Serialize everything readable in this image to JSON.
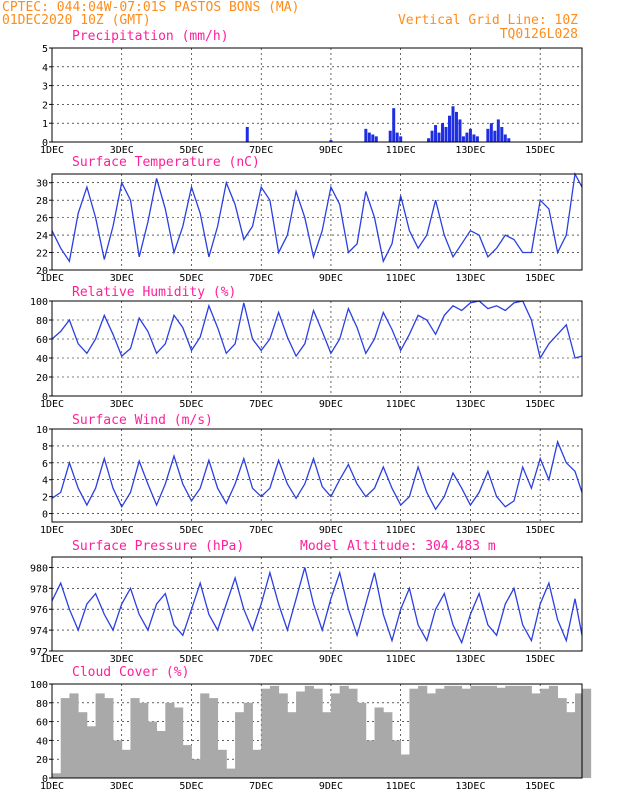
{
  "header": {
    "left1": "CPTEC:  044:04W-07:01S  PASTOS BONS (MA)",
    "left2": "01DEC2020 10Z (GMT)",
    "right1": "Vertical Grid Line: 10Z",
    "right2": "TQ0126L028"
  },
  "colors": {
    "line": "#2b3fe0",
    "bar": "#1f2ee0",
    "cloud": "#a9a9a9",
    "title": "#ff1f9a",
    "header": "#ff8c1a"
  },
  "x_axis": {
    "day_range": [
      0,
      15.2
    ],
    "ticks": [
      {
        "day": 0,
        "label": "1DEC"
      },
      {
        "day": 2,
        "label": "3DEC"
      },
      {
        "day": 4,
        "label": "5DEC"
      },
      {
        "day": 6,
        "label": "7DEC"
      },
      {
        "day": 8,
        "label": "9DEC"
      },
      {
        "day": 10,
        "label": "11DEC"
      },
      {
        "day": 12,
        "label": "13DEC"
      },
      {
        "day": 14,
        "label": "15DEC"
      }
    ]
  },
  "chart_data": [
    {
      "id": "precip",
      "type": "bar",
      "title": "Precipitation (mm/h)",
      "ylim": [
        0,
        5
      ],
      "yticks": [
        0,
        1,
        2,
        3,
        4,
        5
      ],
      "grid": true,
      "x_unit": "days since 01DEC2020 00Z",
      "x": [
        5.6,
        8.0,
        9.0,
        9.1,
        9.2,
        9.3,
        9.7,
        9.8,
        9.9,
        10.0,
        10.8,
        10.9,
        11.0,
        11.1,
        11.2,
        11.3,
        11.4,
        11.5,
        11.6,
        11.7,
        11.8,
        11.9,
        12.0,
        12.1,
        12.2,
        12.5,
        12.6,
        12.7,
        12.8,
        12.9,
        13.0,
        13.1
      ],
      "values": [
        0.8,
        0.1,
        0.7,
        0.5,
        0.4,
        0.3,
        0.6,
        1.8,
        0.5,
        0.3,
        0.2,
        0.6,
        0.9,
        0.5,
        1.0,
        0.8,
        1.4,
        1.9,
        1.6,
        1.2,
        0.3,
        0.5,
        0.7,
        0.4,
        0.3,
        0.7,
        1.0,
        0.6,
        1.2,
        0.8,
        0.4,
        0.2
      ]
    },
    {
      "id": "temp",
      "type": "line",
      "title": "Surface Temperature (nC)",
      "ylim": [
        20,
        31
      ],
      "yticks": [
        20,
        22,
        24,
        26,
        28,
        30
      ],
      "grid": true,
      "x_unit": "days since 01DEC2020 00Z",
      "x": [
        0.0,
        0.25,
        0.5,
        0.75,
        1.0,
        1.25,
        1.5,
        1.75,
        2.0,
        2.25,
        2.5,
        2.75,
        3.0,
        3.25,
        3.5,
        3.75,
        4.0,
        4.25,
        4.5,
        4.75,
        5.0,
        5.25,
        5.5,
        5.75,
        6.0,
        6.25,
        6.5,
        6.75,
        7.0,
        7.25,
        7.5,
        7.75,
        8.0,
        8.25,
        8.5,
        8.75,
        9.0,
        9.25,
        9.5,
        9.75,
        10.0,
        10.25,
        10.5,
        10.75,
        11.0,
        11.25,
        11.5,
        11.75,
        12.0,
        12.25,
        12.5,
        12.75,
        13.0,
        13.25,
        13.5,
        13.75,
        14.0,
        14.25,
        14.5,
        14.75,
        15.0,
        15.2
      ],
      "values": [
        24.5,
        22.5,
        21.0,
        26.5,
        29.5,
        26.0,
        21.2,
        25.0,
        30.0,
        28.0,
        21.5,
        25.5,
        30.5,
        27.0,
        22.0,
        25.0,
        29.5,
        26.5,
        21.5,
        25.0,
        30.0,
        27.5,
        23.5,
        25.0,
        29.5,
        28.0,
        22.0,
        24.0,
        29.0,
        26.0,
        21.5,
        24.5,
        29.5,
        27.5,
        22.0,
        23.0,
        29.0,
        26.0,
        21.0,
        23.0,
        28.5,
        24.5,
        22.5,
        24.0,
        28.0,
        24.0,
        21.5,
        23.0,
        24.5,
        24.0,
        21.5,
        22.5,
        24.0,
        23.5,
        22.0,
        22.0,
        28.0,
        27.0,
        22.0,
        24.0,
        31.0,
        29.5
      ]
    },
    {
      "id": "rh",
      "type": "line",
      "title": "Relative Humidity (%)",
      "ylim": [
        0,
        100
      ],
      "yticks": [
        0,
        20,
        40,
        60,
        80,
        100
      ],
      "grid": true,
      "x_unit": "days since 01DEC2020 00Z",
      "x": [
        0.0,
        0.25,
        0.5,
        0.75,
        1.0,
        1.25,
        1.5,
        1.75,
        2.0,
        2.25,
        2.5,
        2.75,
        3.0,
        3.25,
        3.5,
        3.75,
        4.0,
        4.25,
        4.5,
        4.75,
        5.0,
        5.25,
        5.5,
        5.75,
        6.0,
        6.25,
        6.5,
        6.75,
        7.0,
        7.25,
        7.5,
        7.75,
        8.0,
        8.25,
        8.5,
        8.75,
        9.0,
        9.25,
        9.5,
        9.75,
        10.0,
        10.25,
        10.5,
        10.75,
        11.0,
        11.25,
        11.5,
        11.75,
        12.0,
        12.25,
        12.5,
        12.75,
        13.0,
        13.25,
        13.5,
        13.75,
        14.0,
        14.25,
        14.5,
        14.75,
        15.0,
        15.2
      ],
      "values": [
        60,
        68,
        80,
        55,
        45,
        60,
        85,
        65,
        42,
        50,
        82,
        68,
        45,
        55,
        85,
        72,
        48,
        62,
        95,
        72,
        45,
        55,
        98,
        60,
        48,
        60,
        88,
        62,
        42,
        55,
        90,
        68,
        45,
        60,
        92,
        72,
        45,
        60,
        88,
        70,
        48,
        65,
        85,
        80,
        65,
        85,
        95,
        90,
        98,
        100,
        92,
        95,
        90,
        98,
        100,
        80,
        40,
        55,
        65,
        75,
        40,
        42
      ]
    },
    {
      "id": "wind",
      "type": "line",
      "title": "Surface Wind (m/s)",
      "ylim": [
        -1,
        10
      ],
      "yticks": [
        0,
        2,
        4,
        6,
        8,
        10
      ],
      "grid": true,
      "x_unit": "days since 01DEC2020 00Z",
      "x": [
        0.0,
        0.25,
        0.5,
        0.75,
        1.0,
        1.25,
        1.5,
        1.75,
        2.0,
        2.25,
        2.5,
        2.75,
        3.0,
        3.25,
        3.5,
        3.75,
        4.0,
        4.25,
        4.5,
        4.75,
        5.0,
        5.25,
        5.5,
        5.75,
        6.0,
        6.25,
        6.5,
        6.75,
        7.0,
        7.25,
        7.5,
        7.75,
        8.0,
        8.25,
        8.5,
        8.75,
        9.0,
        9.25,
        9.5,
        9.75,
        10.0,
        10.25,
        10.5,
        10.75,
        11.0,
        11.25,
        11.5,
        11.75,
        12.0,
        12.25,
        12.5,
        12.75,
        13.0,
        13.25,
        13.5,
        13.75,
        14.0,
        14.25,
        14.5,
        14.75,
        15.0,
        15.2
      ],
      "values": [
        1.8,
        2.5,
        6.0,
        3.0,
        1.0,
        3.0,
        6.5,
        3.0,
        0.8,
        2.5,
        6.2,
        3.5,
        1.0,
        3.5,
        6.8,
        3.5,
        1.5,
        3.0,
        6.3,
        3.0,
        1.2,
        3.5,
        6.5,
        3.0,
        2.0,
        3.0,
        6.3,
        3.5,
        1.8,
        3.5,
        6.5,
        3.2,
        2.0,
        4.0,
        5.8,
        3.5,
        2.0,
        3.0,
        5.5,
        3.0,
        1.0,
        2.0,
        5.5,
        2.5,
        0.5,
        2.0,
        4.8,
        3.0,
        1.0,
        2.5,
        5.0,
        2.0,
        0.8,
        1.5,
        5.5,
        3.0,
        6.5,
        4.0,
        8.5,
        6.0,
        5.0,
        2.5
      ]
    },
    {
      "id": "pres",
      "type": "line",
      "title": "Surface Pressure (hPa)",
      "annotation": "Model Altitude: 304.483 m",
      "ylim": [
        972,
        981
      ],
      "yticks": [
        972,
        974,
        976,
        978,
        980
      ],
      "grid": true,
      "x_unit": "days since 01DEC2020 00Z",
      "x": [
        0.0,
        0.25,
        0.5,
        0.75,
        1.0,
        1.25,
        1.5,
        1.75,
        2.0,
        2.25,
        2.5,
        2.75,
        3.0,
        3.25,
        3.5,
        3.75,
        4.0,
        4.25,
        4.5,
        4.75,
        5.0,
        5.25,
        5.5,
        5.75,
        6.0,
        6.25,
        6.5,
        6.75,
        7.0,
        7.25,
        7.5,
        7.75,
        8.0,
        8.25,
        8.5,
        8.75,
        9.0,
        9.25,
        9.5,
        9.75,
        10.0,
        10.25,
        10.5,
        10.75,
        11.0,
        11.25,
        11.5,
        11.75,
        12.0,
        12.25,
        12.5,
        12.75,
        13.0,
        13.25,
        13.5,
        13.75,
        14.0,
        14.25,
        14.5,
        14.75,
        15.0,
        15.2
      ],
      "values": [
        976.8,
        978.5,
        976.0,
        974.0,
        976.5,
        977.5,
        975.5,
        974.0,
        976.5,
        978.0,
        975.5,
        974.0,
        976.5,
        977.5,
        974.5,
        973.5,
        976.0,
        978.5,
        975.5,
        974.0,
        976.5,
        979.0,
        976.0,
        974.0,
        976.5,
        979.5,
        976.5,
        974.0,
        977.0,
        980.0,
        976.5,
        974.0,
        977.0,
        979.5,
        976.0,
        973.5,
        976.5,
        979.5,
        975.5,
        973.0,
        976.0,
        978.0,
        974.5,
        973.0,
        976.0,
        977.5,
        974.5,
        972.8,
        975.5,
        977.5,
        974.5,
        973.5,
        976.5,
        978.0,
        974.5,
        973.0,
        976.5,
        978.5,
        975.0,
        973.0,
        977.0,
        973.5
      ]
    },
    {
      "id": "cloud",
      "type": "area",
      "title": "Cloud Cover (%)",
      "ylim": [
        0,
        100
      ],
      "yticks": [
        0,
        20,
        40,
        60,
        80,
        100
      ],
      "grid": true,
      "x_unit": "days since 01DEC2020 00Z",
      "x": [
        0.0,
        0.25,
        0.5,
        0.75,
        1.0,
        1.25,
        1.5,
        1.75,
        2.0,
        2.25,
        2.5,
        2.75,
        3.0,
        3.25,
        3.5,
        3.75,
        4.0,
        4.25,
        4.5,
        4.75,
        5.0,
        5.25,
        5.5,
        5.75,
        6.0,
        6.25,
        6.5,
        6.75,
        7.0,
        7.25,
        7.5,
        7.75,
        8.0,
        8.25,
        8.5,
        8.75,
        9.0,
        9.25,
        9.5,
        9.75,
        10.0,
        10.25,
        10.5,
        10.75,
        11.0,
        11.25,
        11.5,
        11.75,
        12.0,
        12.25,
        12.5,
        12.75,
        13.0,
        13.25,
        13.5,
        13.75,
        14.0,
        14.25,
        14.5,
        14.75,
        15.0,
        15.2
      ],
      "values": [
        5,
        85,
        90,
        70,
        55,
        90,
        85,
        40,
        30,
        85,
        80,
        60,
        50,
        80,
        75,
        35,
        20,
        90,
        85,
        30,
        10,
        70,
        80,
        30,
        95,
        98,
        90,
        70,
        92,
        98,
        95,
        70,
        90,
        98,
        95,
        80,
        40,
        75,
        70,
        40,
        25,
        95,
        98,
        90,
        95,
        98,
        98,
        95,
        98,
        98,
        98,
        96,
        98,
        98,
        98,
        90,
        95,
        98,
        85,
        70,
        90,
        95
      ]
    }
  ]
}
